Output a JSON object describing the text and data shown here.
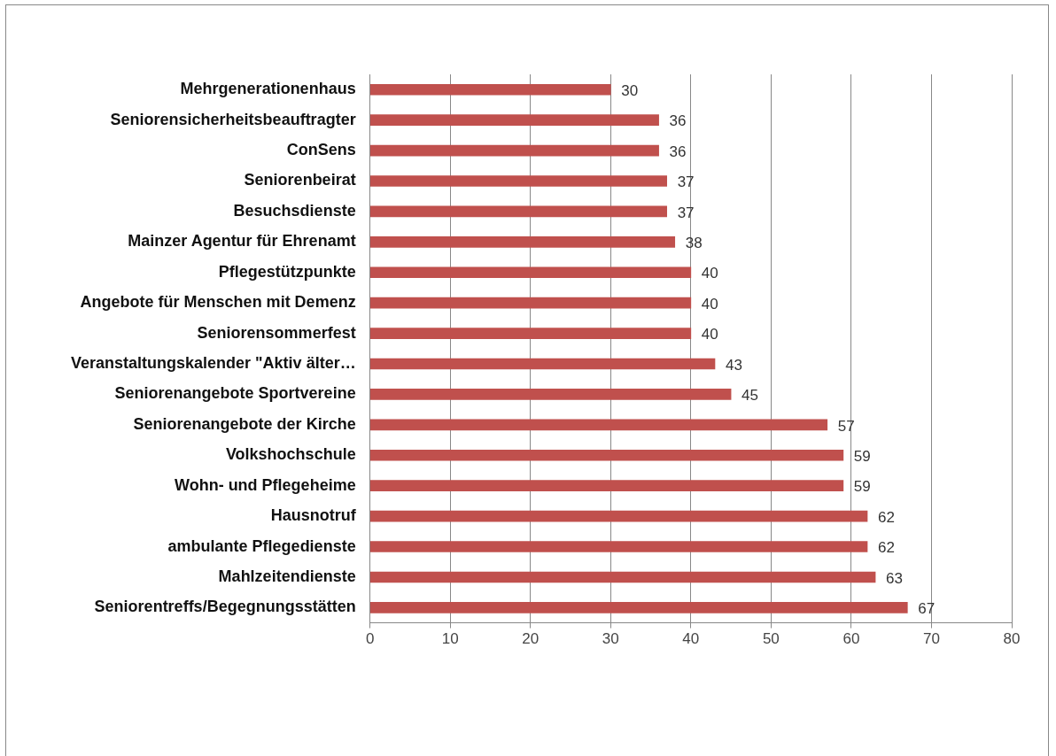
{
  "chart_data": {
    "type": "bar",
    "orientation": "horizontal",
    "categories": [
      "Mehrgenerationenhaus",
      "Seniorensicherheitsbeauftragter",
      "ConSens",
      "Seniorenbeirat",
      "Besuchsdienste",
      "Mainzer Agentur für Ehrenamt",
      "Pflegestützpunkte",
      "Angebote für Menschen mit Demenz",
      "Seniorensommerfest",
      "Veranstaltungskalender \"Aktiv älter…",
      "Seniorenangebote Sportvereine",
      "Seniorenangebote der Kirche",
      "Volkshochschule",
      "Wohn- und Pflegeheime",
      "Hausnotruf",
      "ambulante Pflegedienste",
      "Mahlzeitendienste",
      "Seniorentreffs/Begegnungsstätten"
    ],
    "values": [
      30,
      36,
      36,
      37,
      37,
      38,
      40,
      40,
      40,
      43,
      45,
      57,
      59,
      59,
      62,
      62,
      63,
      67
    ],
    "color": "#c0504d",
    "xlim": [
      0,
      80
    ],
    "xticks": [
      0,
      10,
      20,
      30,
      40,
      50,
      60,
      70,
      80
    ],
    "grid": "x",
    "legend": false,
    "data_labels": true
  }
}
